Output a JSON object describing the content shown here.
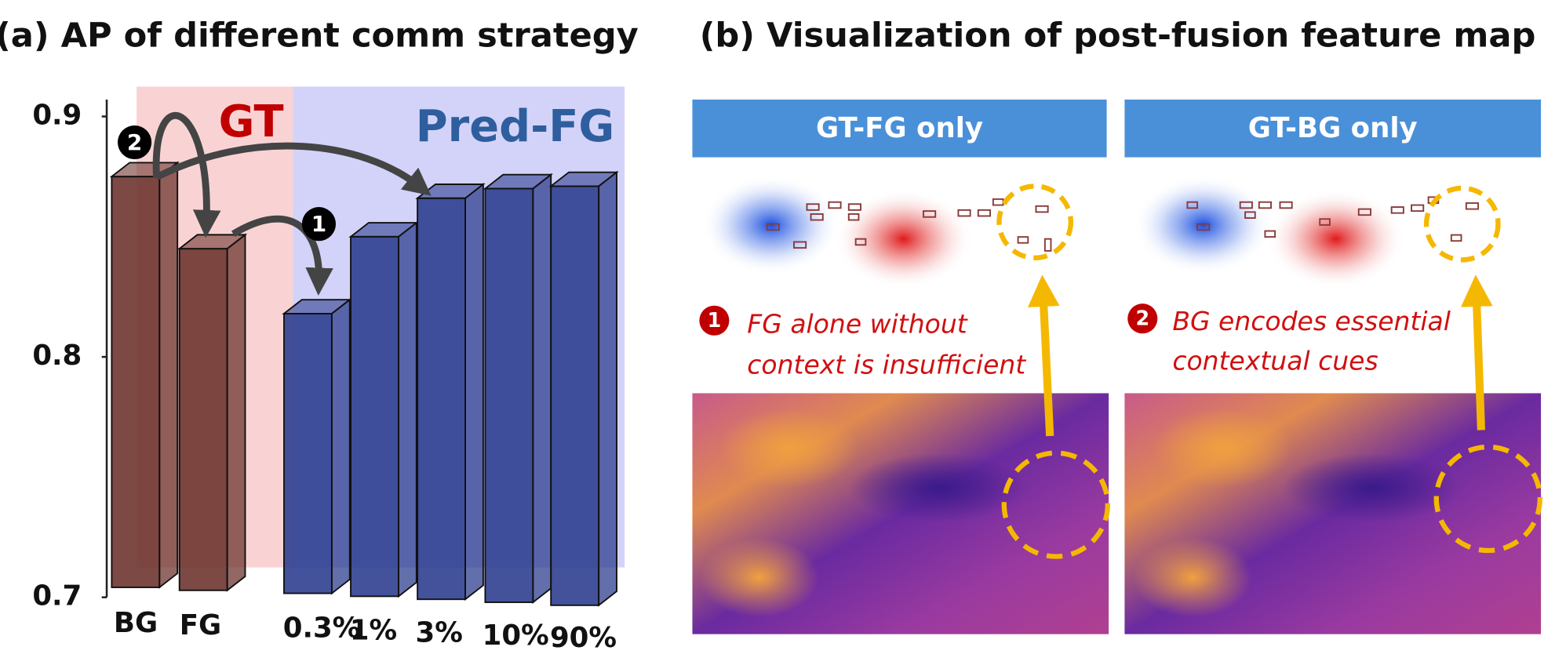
{
  "chart_data": {
    "type": "bar3d",
    "title": "(a) AP of different comm strategy",
    "categories": [
      "BG",
      "FG",
      "0.3%",
      "1%",
      "3%",
      "10%",
      "90%"
    ],
    "series": [
      {
        "name": "GT",
        "color": "#6e3530",
        "values": [
          0.875,
          0.845,
          null,
          null,
          null,
          null,
          null
        ]
      },
      {
        "name": "Pred-FG",
        "color": "#2f3f8f",
        "values": [
          null,
          null,
          0.818,
          0.85,
          0.866,
          0.87,
          0.871
        ]
      }
    ],
    "ylim": [
      0.7,
      0.9
    ],
    "yticks": [
      0.7,
      0.8,
      0.9
    ],
    "annotations": [
      "2",
      "1"
    ]
  },
  "panel_b": {
    "title": "(b) Visualization of post-fusion feature map",
    "panels": [
      {
        "header": "GT-FG only",
        "badge": "1",
        "caption": [
          "FG alone without",
          "context is insufficient"
        ]
      },
      {
        "header": "GT-BG only",
        "badge": "2",
        "caption": [
          "BG encodes essential",
          "contextual cues"
        ]
      }
    ]
  }
}
